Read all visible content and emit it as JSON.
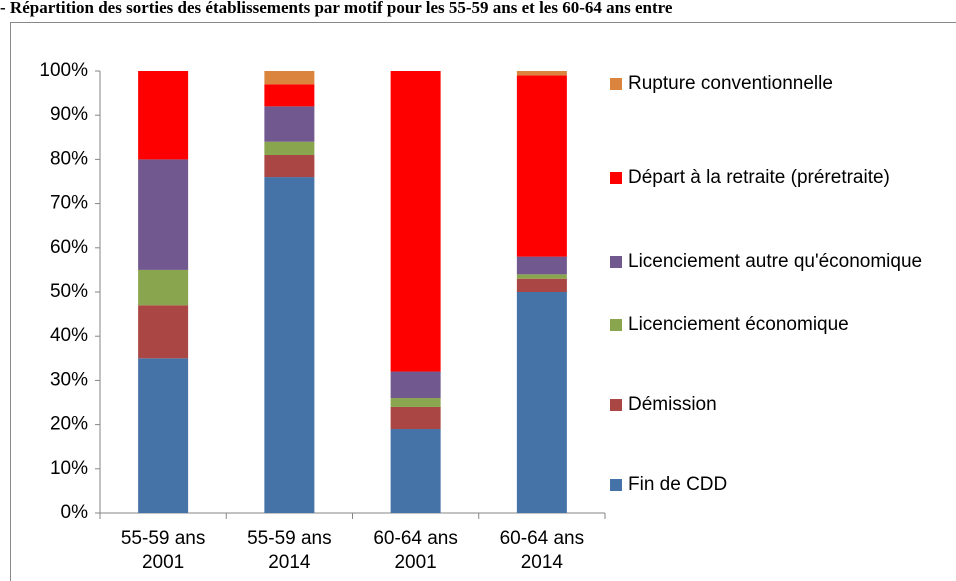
{
  "chart_data": {
    "type": "bar",
    "stacked": true,
    "title": "- Répartition des sorties des établissements par motif pour les 55-59 ans et les 60-64 ans entre",
    "categories": [
      "55-59 ans 2001",
      "55-59 ans 2014",
      "60-64 ans 2001",
      "60-64 ans 2014"
    ],
    "series": [
      {
        "name": "Fin  de CDD",
        "color": "#4572a7",
        "values": [
          35,
          76,
          19,
          50
        ]
      },
      {
        "name": "Démission",
        "color": "#aa4643",
        "values": [
          12,
          5,
          5,
          3
        ]
      },
      {
        "name": "Licenciement économique",
        "color": "#89a54e",
        "values": [
          8,
          3,
          2,
          1
        ]
      },
      {
        "name": "Licenciement autre qu'économique",
        "color": "#71588f",
        "values": [
          25,
          8,
          6,
          4
        ]
      },
      {
        "name": " Départ à la retraite (préretraite)",
        "color": "#ff0000",
        "values": [
          20,
          5,
          68,
          41
        ]
      },
      {
        "name": "Rupture conventionnelle",
        "color": "#db843d",
        "values": [
          0,
          3,
          0,
          1
        ]
      }
    ],
    "ylim": [
      0,
      100
    ],
    "yticks": [
      {
        "value": 0,
        "label": "0%"
      },
      {
        "value": 10,
        "label": "10%"
      },
      {
        "value": 20,
        "label": "20%"
      },
      {
        "value": 30,
        "label": "30%"
      },
      {
        "value": 40,
        "label": "40%"
      },
      {
        "value": 50,
        "label": "50%"
      },
      {
        "value": 60,
        "label": "60%"
      },
      {
        "value": 70,
        "label": "70%"
      },
      {
        "value": 80,
        "label": "80%"
      },
      {
        "value": 90,
        "label": "90%"
      },
      {
        "value": 100,
        "label": "100%"
      }
    ],
    "grid": false,
    "legend": "right"
  }
}
